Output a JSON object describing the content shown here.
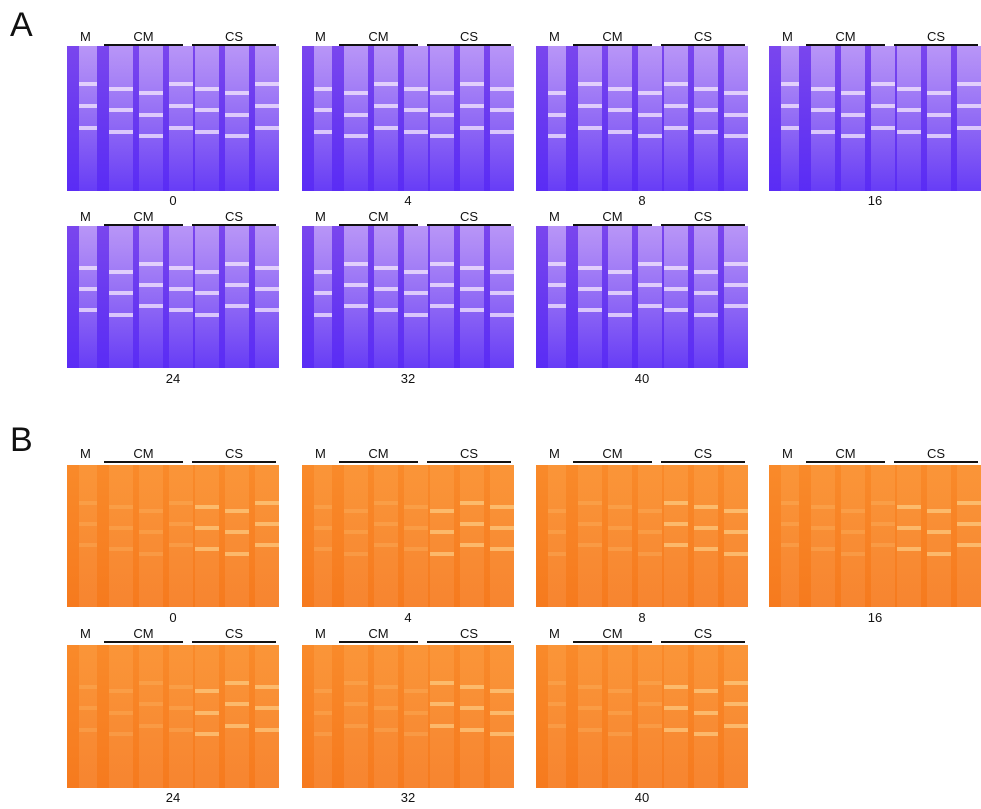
{
  "panels": [
    {
      "label": "A",
      "gels": [
        {
          "marker": "M",
          "groups": [
            "CM",
            "CS"
          ],
          "time": "0"
        },
        {
          "marker": "M",
          "groups": [
            "CM",
            "CS"
          ],
          "time": "4"
        },
        {
          "marker": "M",
          "groups": [
            "CM",
            "CS"
          ],
          "time": "8"
        },
        {
          "marker": "M",
          "groups": [
            "CM",
            "CS"
          ],
          "time": "16"
        },
        {
          "marker": "M",
          "groups": [
            "CM",
            "CS"
          ],
          "time": "24"
        },
        {
          "marker": "M",
          "groups": [
            "CM",
            "CS"
          ],
          "time": "32"
        },
        {
          "marker": "M",
          "groups": [
            "CM",
            "CS"
          ],
          "time": "40"
        }
      ]
    },
    {
      "label": "B",
      "gels": [
        {
          "marker": "M",
          "groups": [
            "CM",
            "CS"
          ],
          "time": "0"
        },
        {
          "marker": "M",
          "groups": [
            "CM",
            "CS"
          ],
          "time": "4"
        },
        {
          "marker": "M",
          "groups": [
            "CM",
            "CS"
          ],
          "time": "8"
        },
        {
          "marker": "M",
          "groups": [
            "CM",
            "CS"
          ],
          "time": "16"
        },
        {
          "marker": "M",
          "groups": [
            "CM",
            "CS"
          ],
          "time": "24"
        },
        {
          "marker": "M",
          "groups": [
            "CM",
            "CS"
          ],
          "time": "32"
        },
        {
          "marker": "M",
          "groups": [
            "CM",
            "CS"
          ],
          "time": "40"
        }
      ]
    }
  ]
}
